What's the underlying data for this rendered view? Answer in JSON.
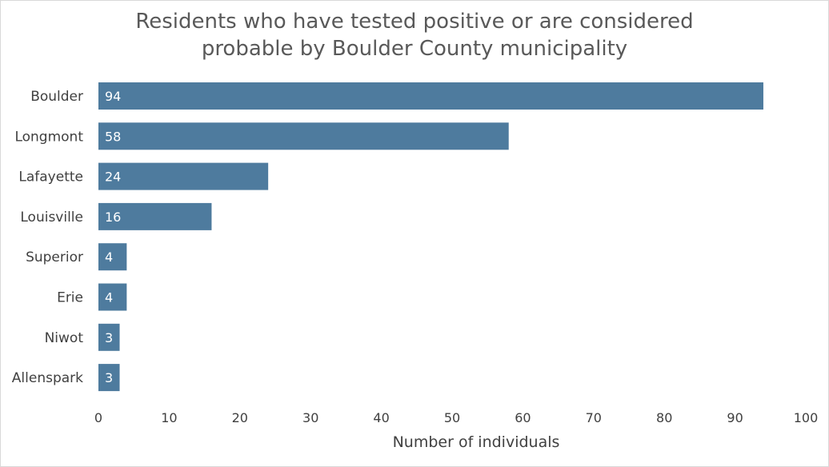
{
  "chart_data": {
    "type": "bar",
    "orientation": "horizontal",
    "title_line1": "Residents who have tested positive or are considered",
    "title_line2": "probable by Boulder County municipality",
    "xlabel": "Number of individuals",
    "ylabel": "",
    "categories": [
      "Boulder",
      "Longmont",
      "Lafayette",
      "Louisville",
      "Superior",
      "Erie",
      "Niwot",
      "Allenspark"
    ],
    "values": [
      94,
      58,
      24,
      16,
      4,
      4,
      3,
      3
    ],
    "xlim": [
      0,
      100
    ],
    "xticks": [
      0,
      10,
      20,
      30,
      40,
      50,
      60,
      70,
      80,
      90,
      100
    ],
    "bar_color": "#4e7b9e",
    "grid": false,
    "legend": "none",
    "data_labels": "inside-base"
  }
}
